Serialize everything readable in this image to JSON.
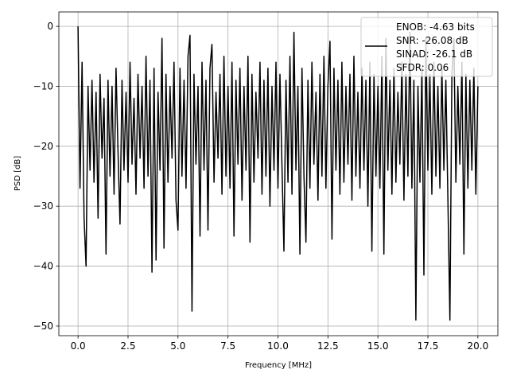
{
  "chart_data": {
    "type": "line",
    "title": "",
    "xlabel": "Frequency [MHz]",
    "ylabel": "PSD [dB]",
    "xlim": [
      -0.96,
      21.0
    ],
    "ylim": [
      -51.6,
      2.4
    ],
    "xticks": [
      "0.0",
      "2.5",
      "5.0",
      "7.5",
      "10.0",
      "12.5",
      "15.0",
      "17.5",
      "20.0"
    ],
    "xtick_values": [
      0,
      2.5,
      5,
      7.5,
      10,
      12.5,
      15,
      17.5,
      20
    ],
    "yticks": [
      "0",
      "−10",
      "−20",
      "−30",
      "−40",
      "−50"
    ],
    "ytick_values": [
      0,
      -10,
      -20,
      -30,
      -40,
      -50
    ],
    "grid": true,
    "line_color": "#000000",
    "grid_color": "#b0b0b0",
    "legend": {
      "placement": "upper-right",
      "entries": [
        "ENOB: -4.63 bits",
        "SNR: -26.08 dB",
        "SINAD: -26.1 dB",
        "SFDR: 0.06"
      ]
    },
    "series": [
      {
        "x_start": 0,
        "x_step": 0.1,
        "values": [
          0,
          -27,
          -6,
          -32,
          -40,
          -10,
          -24,
          -9,
          -26,
          -11,
          -32,
          -8,
          -22,
          -12,
          -38,
          -9,
          -25,
          -10,
          -28,
          -7,
          -21,
          -33,
          -9,
          -24,
          -11,
          -26,
          -6,
          -23,
          -12,
          -28,
          -8,
          -22,
          -10,
          -27,
          -5,
          -25,
          -9,
          -41,
          -7,
          -39,
          -11,
          -24,
          -2,
          -37,
          -8,
          -26,
          -10,
          -22,
          -6,
          -29,
          -34,
          -7,
          -25,
          -9,
          -27,
          -5,
          -1.5,
          -47.5,
          -8,
          -23,
          -10,
          -35,
          -6,
          -24,
          -9,
          -34,
          -7,
          -3,
          -26,
          -11,
          -22,
          -8,
          -28,
          -5,
          -25,
          -10,
          -27,
          -6,
          -35,
          -9,
          -23,
          -7,
          -29,
          -10,
          -24,
          -5,
          -36,
          -8,
          -26,
          -11,
          -22,
          -6,
          -28,
          -9,
          -25,
          -7,
          -30,
          -10,
          -24,
          -6,
          -27,
          -8,
          -23,
          -37.5,
          -9,
          -26,
          -5,
          -28,
          -1,
          -24,
          -10,
          -38,
          -7,
          -25,
          -36,
          -9,
          -27,
          -6,
          -23,
          -11,
          -29,
          -8,
          -25,
          -5,
          -27,
          -10,
          -2.5,
          -35.5,
          -7,
          -24,
          -9,
          -28,
          -6,
          -26,
          -10,
          -23,
          -8,
          -29,
          -5,
          -25,
          -11,
          -27,
          -7,
          -24,
          -9,
          -30,
          -6,
          -37.5,
          -8,
          -25,
          -10,
          -27,
          -5,
          -38,
          -2,
          -24,
          -9,
          -28,
          -7,
          -26,
          -11,
          -23,
          -6,
          -29,
          -8,
          -25,
          -1,
          -27,
          -9,
          -49,
          -10,
          -26,
          -7,
          -41.5,
          -2,
          -24,
          -8,
          -28,
          -6,
          -25,
          -10,
          -27,
          -7,
          -24,
          -9,
          -29,
          -49,
          -8,
          -2,
          -26,
          -10,
          -23,
          -6,
          -38,
          -8,
          -27,
          -9,
          -24,
          -7,
          -28,
          -10
        ]
      }
    ]
  }
}
